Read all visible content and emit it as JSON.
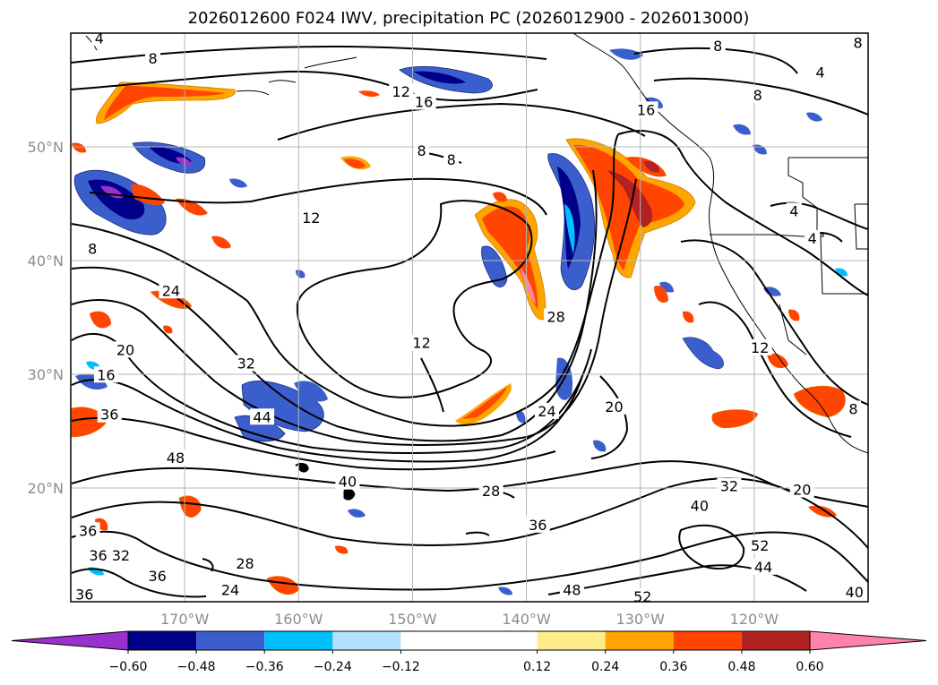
{
  "chart_data": {
    "type": "heatmap",
    "title": "2026012600 F024 IWV, precipitation PC (2026012900 - 2026013000)",
    "map": {
      "lon_range": [
        -180,
        -110
      ],
      "lat_range": [
        10,
        60
      ],
      "lon_ticks": [
        -170,
        -160,
        -150,
        -140,
        -130,
        -120
      ],
      "lat_ticks": [
        20,
        30,
        40,
        50
      ],
      "lon_tick_labels": [
        "170°W",
        "160°W",
        "150°W",
        "140°W",
        "130°W",
        "120°W"
      ],
      "lat_tick_labels": [
        "20°N",
        "30°N",
        "40°N",
        "50°N"
      ],
      "grid": true
    },
    "colorbar": {
      "orientation": "horizontal",
      "extend": "both",
      "levels": [
        -0.6,
        -0.48,
        -0.36,
        -0.24,
        -0.12,
        0.12,
        0.24,
        0.36,
        0.48,
        0.6
      ],
      "tick_labels": [
        "−0.60",
        "−0.48",
        "−0.36",
        "−0.24",
        "−0.12",
        "0.12",
        "0.24",
        "0.36",
        "0.48",
        "0.60"
      ],
      "colors": [
        "#9932cc",
        "#00008b",
        "#3a5fcd",
        "#00bfff",
        "#b0e2ff",
        "#ffffff",
        "#ffec8b",
        "#ffa500",
        "#ff4500",
        "#b22222",
        "#ff82ab"
      ]
    },
    "contour_labels": [
      {
        "text": "4",
        "lon": -177.5,
        "lat": 59.5
      },
      {
        "text": "8",
        "lon": -172.8,
        "lat": 57.7
      },
      {
        "text": "12",
        "lon": -151.0,
        "lat": 54.8
      },
      {
        "text": "16",
        "lon": -149.0,
        "lat": 53.9
      },
      {
        "text": "8",
        "lon": -110.9,
        "lat": 59.1
      },
      {
        "text": "8",
        "lon": -123.2,
        "lat": 58.8
      },
      {
        "text": "4",
        "lon": -114.2,
        "lat": 56.5
      },
      {
        "text": "8",
        "lon": -119.7,
        "lat": 54.5
      },
      {
        "text": "16",
        "lon": -129.5,
        "lat": 53.2
      },
      {
        "text": "8",
        "lon": -149.2,
        "lat": 49.6
      },
      {
        "text": "8",
        "lon": -146.6,
        "lat": 48.8
      },
      {
        "text": "12",
        "lon": -158.9,
        "lat": 43.7
      },
      {
        "text": "4",
        "lon": -116.5,
        "lat": 44.3
      },
      {
        "text": "4",
        "lon": -114.9,
        "lat": 41.9
      },
      {
        "text": "8",
        "lon": -178.1,
        "lat": 41.0
      },
      {
        "text": "24",
        "lon": -171.2,
        "lat": 37.3
      },
      {
        "text": "28",
        "lon": -137.4,
        "lat": 35.0
      },
      {
        "text": "12",
        "lon": -149.2,
        "lat": 32.7
      },
      {
        "text": "12",
        "lon": -119.5,
        "lat": 32.3
      },
      {
        "text": "20",
        "lon": -175.2,
        "lat": 32.1
      },
      {
        "text": "16",
        "lon": -176.9,
        "lat": 29.9
      },
      {
        "text": "32",
        "lon": -164.6,
        "lat": 30.9
      },
      {
        "text": "8",
        "lon": -111.3,
        "lat": 26.9
      },
      {
        "text": "24",
        "lon": -138.2,
        "lat": 26.7
      },
      {
        "text": "36",
        "lon": -176.6,
        "lat": 26.4
      },
      {
        "text": "20",
        "lon": -132.3,
        "lat": 27.1
      },
      {
        "text": "44",
        "lon": -163.2,
        "lat": 26.2
      },
      {
        "text": "48",
        "lon": -170.8,
        "lat": 22.6
      },
      {
        "text": "40",
        "lon": -155.7,
        "lat": 20.5
      },
      {
        "text": "28",
        "lon": -143.1,
        "lat": 19.7
      },
      {
        "text": "32",
        "lon": -122.2,
        "lat": 20.1
      },
      {
        "text": "20",
        "lon": -115.8,
        "lat": 19.8
      },
      {
        "text": "40",
        "lon": -124.8,
        "lat": 18.4
      },
      {
        "text": "36",
        "lon": -178.5,
        "lat": 16.2
      },
      {
        "text": "36",
        "lon": -139.0,
        "lat": 16.7
      },
      {
        "text": "36",
        "lon": -177.6,
        "lat": 14.0
      },
      {
        "text": "32",
        "lon": -175.6,
        "lat": 14.0
      },
      {
        "text": "28",
        "lon": -164.7,
        "lat": 13.3
      },
      {
        "text": "52",
        "lon": -119.5,
        "lat": 14.9
      },
      {
        "text": "36",
        "lon": -172.4,
        "lat": 12.2
      },
      {
        "text": "44",
        "lon": -119.2,
        "lat": 13.0
      },
      {
        "text": "24",
        "lon": -166.0,
        "lat": 11.0
      },
      {
        "text": "48",
        "lon": -136.0,
        "lat": 11.0
      },
      {
        "text": "36",
        "lon": -178.8,
        "lat": 10.6
      },
      {
        "text": "52",
        "lon": -129.8,
        "lat": 10.4
      },
      {
        "text": "40",
        "lon": -111.2,
        "lat": 10.8
      }
    ]
  }
}
